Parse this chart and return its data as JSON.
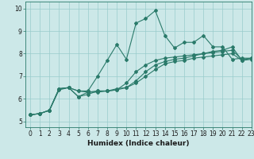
{
  "title": "",
  "xlabel": "Humidex (Indice chaleur)",
  "ylabel": "",
  "bg_color": "#cce8e8",
  "line_color": "#2a7a6a",
  "grid_color": "#99cccc",
  "xlim": [
    -0.5,
    23
  ],
  "ylim": [
    4.75,
    10.3
  ],
  "xticks": [
    0,
    1,
    2,
    3,
    4,
    5,
    6,
    7,
    8,
    9,
    10,
    11,
    12,
    13,
    14,
    15,
    16,
    17,
    18,
    19,
    20,
    21,
    22,
    23
  ],
  "yticks": [
    5,
    6,
    7,
    8,
    9,
    10
  ],
  "lines": [
    [
      5.3,
      5.35,
      5.5,
      6.45,
      6.5,
      6.35,
      6.35,
      7.0,
      7.7,
      8.4,
      7.75,
      9.35,
      9.55,
      9.9,
      8.8,
      8.25,
      8.5,
      8.5,
      8.8,
      8.3,
      8.3,
      7.75,
      7.8,
      7.8
    ],
    [
      5.3,
      5.35,
      5.5,
      6.45,
      6.5,
      6.1,
      6.3,
      6.35,
      6.35,
      6.45,
      6.5,
      6.8,
      7.2,
      7.5,
      7.65,
      7.75,
      7.8,
      7.9,
      8.0,
      8.05,
      8.1,
      8.15,
      7.75,
      7.8
    ],
    [
      5.3,
      5.35,
      5.5,
      6.45,
      6.5,
      6.1,
      6.2,
      6.35,
      6.35,
      6.4,
      6.5,
      6.7,
      7.0,
      7.3,
      7.55,
      7.65,
      7.7,
      7.8,
      7.85,
      7.9,
      7.95,
      8.0,
      7.7,
      7.75
    ],
    [
      5.3,
      5.35,
      5.5,
      6.4,
      6.5,
      6.35,
      6.3,
      6.3,
      6.35,
      6.4,
      6.7,
      7.2,
      7.5,
      7.7,
      7.8,
      7.85,
      7.9,
      7.95,
      8.0,
      8.1,
      8.15,
      8.3,
      7.7,
      7.8
    ]
  ],
  "marker": "D",
  "markersize": 2.0,
  "linewidth": 0.8,
  "tick_fontsize": 5.5,
  "xlabel_fontsize": 6.5
}
